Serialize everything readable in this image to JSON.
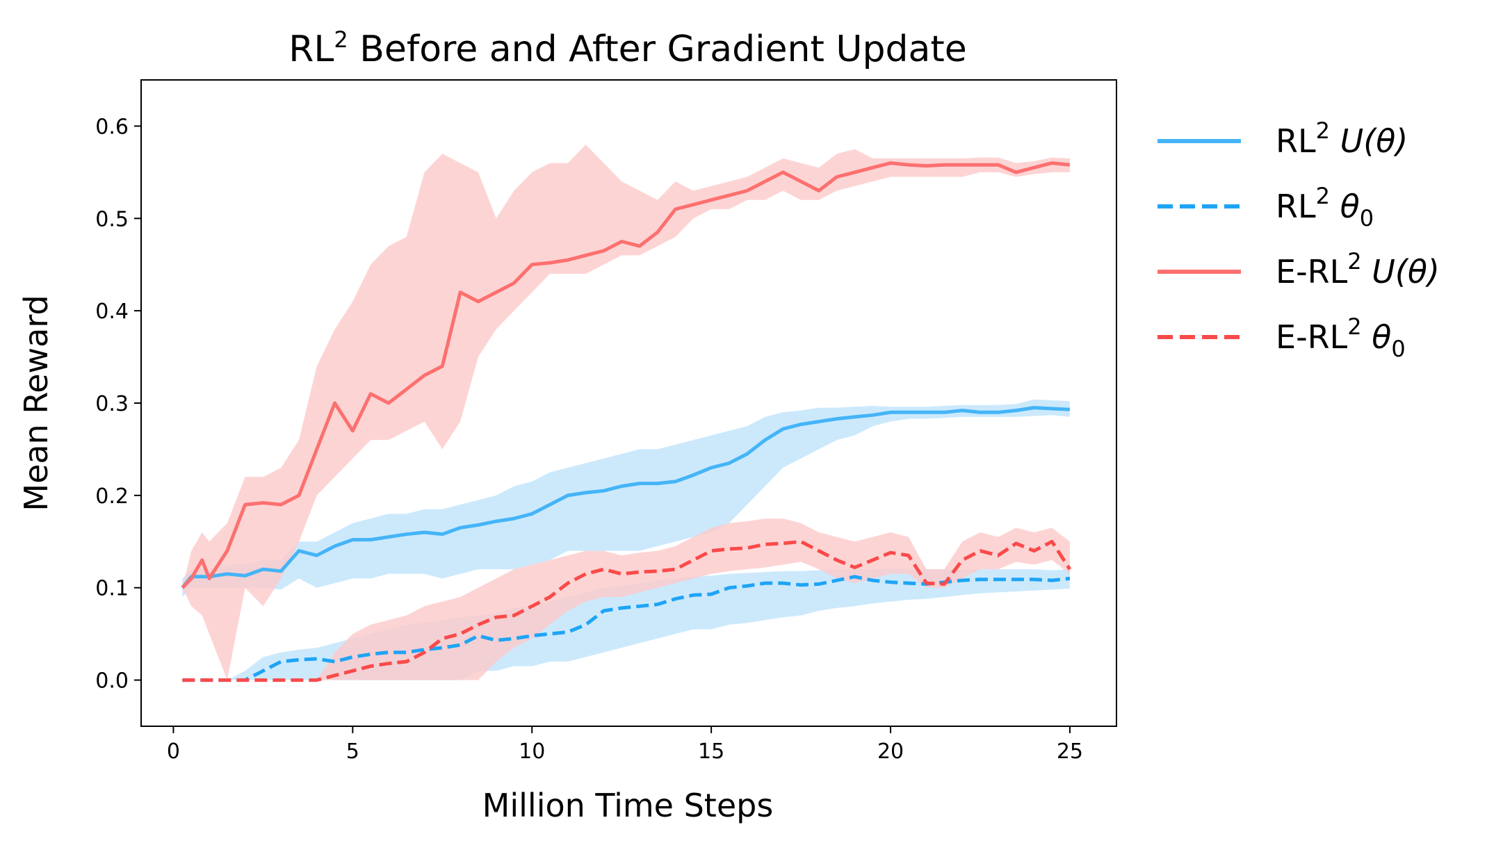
{
  "chart_data": {
    "type": "line",
    "title": "RL",
    "title_sup": "2",
    "title_rest": " Before and After Gradient Update",
    "xlabel": "Million Time Steps",
    "ylabel": "Mean Reward",
    "xlim": [
      -0.9,
      26.3
    ],
    "ylim": [
      -0.05,
      0.65
    ],
    "xticks": [
      0,
      5,
      10,
      15,
      20,
      25
    ],
    "xtick_labels": [
      "0",
      "5",
      "10",
      "15",
      "20",
      "25"
    ],
    "yticks": [
      0.0,
      0.1,
      0.2,
      0.3,
      0.4,
      0.5,
      0.6
    ],
    "ytick_labels": [
      "0.0",
      "0.1",
      "0.2",
      "0.3",
      "0.4",
      "0.5",
      "0.6"
    ],
    "grid": false,
    "legend_position": "outside-right",
    "series": [
      {
        "key": "rl2_u",
        "legend_main": "RL",
        "legend_sup": "2",
        "legend_math": " U(θ)",
        "legend_sub": "",
        "color": "#45b4f7",
        "band_color": "#bfe4fb",
        "dashed": false,
        "x": [
          0.25,
          0.5,
          1,
          1.5,
          2,
          2.5,
          3,
          3.5,
          4,
          4.5,
          5,
          5.5,
          6,
          6.5,
          7,
          7.5,
          8,
          8.5,
          9,
          9.5,
          10,
          10.5,
          11,
          11.5,
          12,
          12.5,
          13,
          13.5,
          14,
          14.5,
          15,
          15.5,
          16,
          16.5,
          17,
          17.5,
          18,
          18.5,
          19,
          19.5,
          20,
          20.5,
          21,
          21.5,
          22,
          22.5,
          23,
          23.5,
          24,
          24.5,
          25
        ],
        "mean": [
          0.1,
          0.112,
          0.112,
          0.115,
          0.113,
          0.12,
          0.118,
          0.14,
          0.135,
          0.145,
          0.152,
          0.152,
          0.155,
          0.158,
          0.16,
          0.158,
          0.165,
          0.168,
          0.172,
          0.175,
          0.18,
          0.19,
          0.2,
          0.203,
          0.205,
          0.21,
          0.213,
          0.213,
          0.215,
          0.222,
          0.23,
          0.235,
          0.245,
          0.26,
          0.272,
          0.277,
          0.28,
          0.283,
          0.285,
          0.287,
          0.29,
          0.29,
          0.29,
          0.29,
          0.292,
          0.29,
          0.29,
          0.292,
          0.295,
          0.294,
          0.293
        ],
        "lower": [
          0.09,
          0.1,
          0.1,
          0.1,
          0.1,
          0.1,
          0.098,
          0.11,
          0.1,
          0.105,
          0.11,
          0.11,
          0.115,
          0.115,
          0.115,
          0.11,
          0.115,
          0.12,
          0.12,
          0.12,
          0.125,
          0.13,
          0.14,
          0.14,
          0.14,
          0.14,
          0.14,
          0.145,
          0.15,
          0.155,
          0.16,
          0.17,
          0.19,
          0.21,
          0.23,
          0.24,
          0.25,
          0.26,
          0.265,
          0.275,
          0.28,
          0.283,
          0.283,
          0.284,
          0.285,
          0.285,
          0.285,
          0.285,
          0.286,
          0.287,
          0.285
        ],
        "upper": [
          0.11,
          0.12,
          0.12,
          0.125,
          0.125,
          0.13,
          0.13,
          0.15,
          0.15,
          0.16,
          0.17,
          0.175,
          0.18,
          0.18,
          0.185,
          0.185,
          0.19,
          0.195,
          0.2,
          0.21,
          0.215,
          0.225,
          0.23,
          0.235,
          0.24,
          0.245,
          0.25,
          0.25,
          0.255,
          0.26,
          0.265,
          0.27,
          0.275,
          0.285,
          0.29,
          0.292,
          0.295,
          0.295,
          0.296,
          0.297,
          0.296,
          0.296,
          0.296,
          0.297,
          0.298,
          0.298,
          0.298,
          0.299,
          0.304,
          0.303,
          0.302
        ]
      },
      {
        "key": "rl2_theta",
        "legend_main": "RL",
        "legend_sup": "2",
        "legend_math": " θ",
        "legend_sub": "0",
        "color": "#1ea4f5",
        "band_color": "#bfe4fb",
        "dashed": true,
        "x": [
          0.25,
          0.5,
          1,
          1.5,
          2,
          2.5,
          3,
          3.5,
          4,
          4.5,
          5,
          5.5,
          6,
          6.5,
          7,
          7.5,
          8,
          8.5,
          9,
          9.5,
          10,
          10.5,
          11,
          11.5,
          12,
          12.5,
          13,
          13.5,
          14,
          14.5,
          15,
          15.5,
          16,
          16.5,
          17,
          17.5,
          18,
          18.5,
          19,
          19.5,
          20,
          20.5,
          21,
          21.5,
          22,
          22.5,
          23,
          23.5,
          24,
          24.5,
          25
        ],
        "mean": [
          0.0,
          0.0,
          0.0,
          0.0,
          0.0,
          0.01,
          0.02,
          0.022,
          0.023,
          0.02,
          0.025,
          0.028,
          0.03,
          0.03,
          0.033,
          0.035,
          0.038,
          0.048,
          0.043,
          0.045,
          0.048,
          0.05,
          0.052,
          0.06,
          0.075,
          0.078,
          0.08,
          0.082,
          0.088,
          0.092,
          0.093,
          0.1,
          0.102,
          0.105,
          0.105,
          0.103,
          0.104,
          0.108,
          0.112,
          0.108,
          0.106,
          0.105,
          0.104,
          0.106,
          0.108,
          0.109,
          0.109,
          0.109,
          0.109,
          0.108,
          0.11
        ],
        "lower": [
          0.0,
          0.0,
          0.0,
          0.0,
          0.0,
          0.0,
          0.0,
          0.0,
          0.0,
          0.0,
          0.0,
          0.0,
          0.0,
          0.0,
          0.0,
          0.0,
          0.0,
          0.01,
          0.01,
          0.015,
          0.015,
          0.02,
          0.02,
          0.025,
          0.03,
          0.035,
          0.04,
          0.045,
          0.05,
          0.055,
          0.055,
          0.06,
          0.062,
          0.065,
          0.068,
          0.07,
          0.075,
          0.078,
          0.08,
          0.083,
          0.085,
          0.087,
          0.088,
          0.09,
          0.092,
          0.094,
          0.095,
          0.096,
          0.097,
          0.098,
          0.099
        ],
        "upper": [
          0.0,
          0.0,
          0.0,
          0.0,
          0.01,
          0.025,
          0.03,
          0.033,
          0.035,
          0.04,
          0.045,
          0.05,
          0.055,
          0.06,
          0.062,
          0.065,
          0.068,
          0.07,
          0.072,
          0.078,
          0.08,
          0.085,
          0.09,
          0.095,
          0.1,
          0.102,
          0.105,
          0.108,
          0.11,
          0.112,
          0.113,
          0.115,
          0.116,
          0.117,
          0.118,
          0.118,
          0.119,
          0.12,
          0.12,
          0.12,
          0.121,
          0.12,
          0.12,
          0.12,
          0.12,
          0.12,
          0.12,
          0.12,
          0.12,
          0.119,
          0.12
        ]
      },
      {
        "key": "erl2_u",
        "legend_main": "E-RL",
        "legend_sup": "2",
        "legend_math": " U(θ)",
        "legend_sub": "",
        "color": "#fc7070",
        "band_color": "#fcc9c9",
        "dashed": false,
        "x": [
          0.25,
          0.5,
          0.8,
          1,
          1.5,
          2,
          2.5,
          3,
          3.5,
          4,
          4.5,
          5,
          5.5,
          6,
          6.5,
          7,
          7.5,
          8,
          8.5,
          9,
          9.5,
          10,
          10.5,
          11,
          11.5,
          12,
          12.5,
          13,
          13.5,
          14,
          14.5,
          15,
          15.5,
          16,
          16.5,
          17,
          17.5,
          18,
          18.5,
          19,
          19.5,
          20,
          20.5,
          21,
          21.5,
          22,
          22.5,
          23,
          23.5,
          24,
          24.5,
          25
        ],
        "mean": [
          0.1,
          0.11,
          0.13,
          0.11,
          0.14,
          0.19,
          0.192,
          0.19,
          0.2,
          0.25,
          0.3,
          0.27,
          0.31,
          0.3,
          0.315,
          0.33,
          0.34,
          0.42,
          0.41,
          0.42,
          0.43,
          0.45,
          0.452,
          0.455,
          0.46,
          0.465,
          0.475,
          0.47,
          0.485,
          0.51,
          0.515,
          0.52,
          0.525,
          0.53,
          0.54,
          0.55,
          0.54,
          0.53,
          0.545,
          0.55,
          0.555,
          0.56,
          0.558,
          0.557,
          0.558,
          0.558,
          0.558,
          0.558,
          0.55,
          0.555,
          0.56,
          0.558
        ],
        "lower": [
          0.1,
          0.08,
          0.07,
          0.05,
          0.0,
          0.1,
          0.08,
          0.11,
          0.15,
          0.2,
          0.22,
          0.24,
          0.26,
          0.26,
          0.27,
          0.28,
          0.25,
          0.28,
          0.35,
          0.38,
          0.4,
          0.42,
          0.44,
          0.44,
          0.44,
          0.45,
          0.46,
          0.46,
          0.47,
          0.48,
          0.5,
          0.51,
          0.51,
          0.52,
          0.52,
          0.53,
          0.52,
          0.52,
          0.53,
          0.535,
          0.54,
          0.545,
          0.545,
          0.545,
          0.545,
          0.545,
          0.55,
          0.55,
          0.545,
          0.548,
          0.55,
          0.55
        ],
        "upper": [
          0.1,
          0.14,
          0.16,
          0.15,
          0.17,
          0.22,
          0.22,
          0.23,
          0.26,
          0.34,
          0.38,
          0.41,
          0.45,
          0.47,
          0.48,
          0.55,
          0.57,
          0.56,
          0.55,
          0.5,
          0.53,
          0.55,
          0.56,
          0.56,
          0.58,
          0.56,
          0.54,
          0.53,
          0.52,
          0.54,
          0.53,
          0.535,
          0.54,
          0.545,
          0.555,
          0.565,
          0.56,
          0.555,
          0.57,
          0.575,
          0.565,
          0.565,
          0.565,
          0.565,
          0.565,
          0.565,
          0.566,
          0.566,
          0.56,
          0.562,
          0.566,
          0.565
        ]
      },
      {
        "key": "erl2_theta",
        "legend_main": "E-RL",
        "legend_sup": "2",
        "legend_math": " θ",
        "legend_sub": "0",
        "color": "#fa4a4a",
        "band_color": "#fcc9c9",
        "dashed": true,
        "x": [
          0.25,
          0.5,
          1,
          1.5,
          2,
          2.5,
          3,
          3.5,
          4,
          4.5,
          5,
          5.5,
          6,
          6.5,
          7,
          7.5,
          8,
          8.5,
          9,
          9.5,
          10,
          10.5,
          11,
          11.5,
          12,
          12.5,
          13,
          13.5,
          14,
          14.5,
          15,
          15.5,
          16,
          16.5,
          17,
          17.5,
          18,
          18.5,
          19,
          19.5,
          20,
          20.5,
          21,
          21.5,
          22,
          22.5,
          23,
          23.5,
          24,
          24.5,
          25
        ],
        "mean": [
          0.0,
          0.0,
          0.0,
          0.0,
          0.0,
          0.0,
          0.0,
          0.0,
          0.0,
          0.005,
          0.01,
          0.015,
          0.018,
          0.02,
          0.03,
          0.045,
          0.05,
          0.06,
          0.068,
          0.07,
          0.08,
          0.09,
          0.105,
          0.115,
          0.12,
          0.115,
          0.117,
          0.118,
          0.12,
          0.13,
          0.14,
          0.142,
          0.143,
          0.147,
          0.148,
          0.15,
          0.14,
          0.13,
          0.122,
          0.13,
          0.138,
          0.135,
          0.105,
          0.104,
          0.13,
          0.14,
          0.135,
          0.148,
          0.14,
          0.15,
          0.12
        ],
        "lower": [
          0.0,
          0.0,
          0.0,
          0.0,
          0.0,
          0.0,
          0.0,
          0.0,
          0.0,
          0.0,
          0.0,
          0.0,
          0.0,
          0.0,
          0.0,
          0.0,
          0.0,
          0.0,
          0.02,
          0.035,
          0.045,
          0.06,
          0.075,
          0.085,
          0.09,
          0.09,
          0.095,
          0.1,
          0.105,
          0.11,
          0.115,
          0.118,
          0.12,
          0.122,
          0.125,
          0.128,
          0.12,
          0.11,
          0.105,
          0.11,
          0.115,
          0.115,
          0.1,
          0.1,
          0.11,
          0.12,
          0.12,
          0.128,
          0.125,
          0.13,
          0.115
        ],
        "upper": [
          0.0,
          0.0,
          0.0,
          0.0,
          0.0,
          0.0,
          0.0,
          0.0,
          0.0,
          0.03,
          0.05,
          0.06,
          0.065,
          0.07,
          0.08,
          0.085,
          0.09,
          0.1,
          0.11,
          0.12,
          0.125,
          0.13,
          0.135,
          0.14,
          0.14,
          0.135,
          0.138,
          0.14,
          0.145,
          0.155,
          0.165,
          0.17,
          0.172,
          0.175,
          0.175,
          0.17,
          0.16,
          0.155,
          0.15,
          0.155,
          0.16,
          0.155,
          0.12,
          0.12,
          0.15,
          0.16,
          0.155,
          0.165,
          0.16,
          0.165,
          0.15
        ]
      }
    ]
  }
}
